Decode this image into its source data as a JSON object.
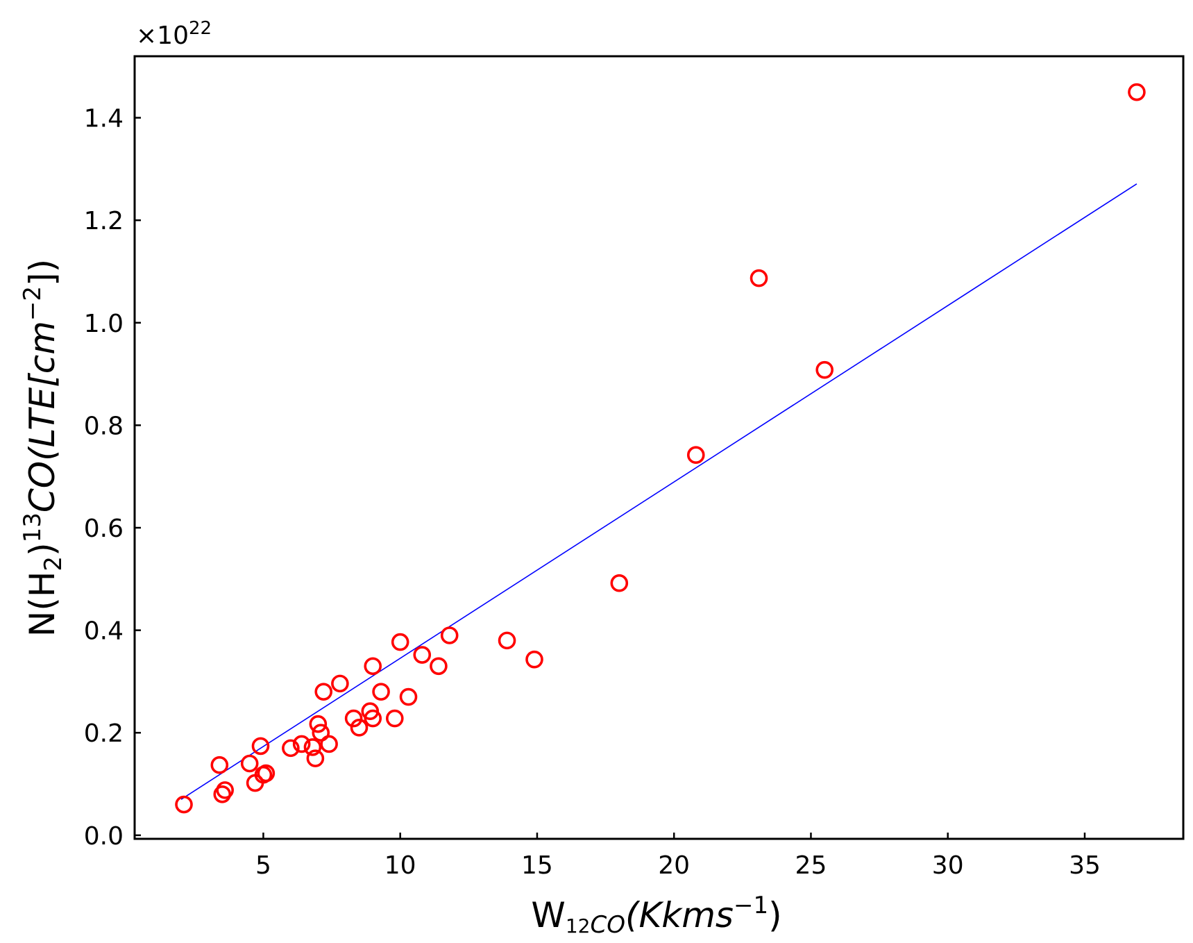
{
  "chart_data": {
    "type": "scatter",
    "title": "",
    "xlabel": {
      "main": "W",
      "sub_sup": "12",
      "sub": "CO",
      "rest": "(Kkms",
      "sup": "−1",
      "close": ")"
    },
    "ylabel": {
      "prefix": "N(H",
      "sub": "2",
      "close": ")",
      "sup": "13",
      "body": "CO(LTE[cm",
      "sup2": "−2",
      "end": "])"
    },
    "y_offset_label": "×10",
    "y_offset_exponent": "22",
    "xlim": [
      0.3,
      38.6
    ],
    "ylim": [
      -0.007,
      1.52
    ],
    "y_unit_multiplier": 1e+22,
    "xticks": [
      5,
      10,
      15,
      20,
      25,
      30,
      35
    ],
    "xtick_labels": [
      "5",
      "10",
      "15",
      "20",
      "25",
      "30",
      "35"
    ],
    "yticks": [
      0.0,
      0.2,
      0.4,
      0.6,
      0.8,
      1.0,
      1.2,
      1.4
    ],
    "ytick_labels": [
      "0.0",
      "0.2",
      "0.4",
      "0.6",
      "0.8",
      "1.0",
      "1.2",
      "1.4"
    ],
    "grid": false,
    "marker_color": "#ff0000",
    "fit_color": "#0000ff",
    "series": [
      {
        "kind": "points",
        "x": [
          2.1,
          3.4,
          3.5,
          3.6,
          4.5,
          4.7,
          4.9,
          5.0,
          5.1,
          6.0,
          6.4,
          6.8,
          6.9,
          7.0,
          7.1,
          7.2,
          7.4,
          7.8,
          8.3,
          8.5,
          8.9,
          9.0,
          9.0,
          9.3,
          9.8,
          10.0,
          10.3,
          10.8,
          11.4,
          11.8,
          13.9,
          14.9,
          18.0,
          20.8,
          23.1,
          25.5,
          36.9
        ],
        "y": [
          0.06,
          0.137,
          0.08,
          0.088,
          0.14,
          0.102,
          0.174,
          0.118,
          0.121,
          0.17,
          0.178,
          0.172,
          0.15,
          0.217,
          0.2,
          0.28,
          0.178,
          0.296,
          0.228,
          0.21,
          0.242,
          0.228,
          0.33,
          0.28,
          0.228,
          0.377,
          0.27,
          0.352,
          0.33,
          0.39,
          0.38,
          0.343,
          0.492,
          0.742,
          1.087,
          0.908,
          1.45
        ]
      },
      {
        "kind": "fit-line",
        "x": [
          2.0,
          36.9
        ],
        "y": [
          0.07,
          1.271
        ]
      }
    ]
  }
}
